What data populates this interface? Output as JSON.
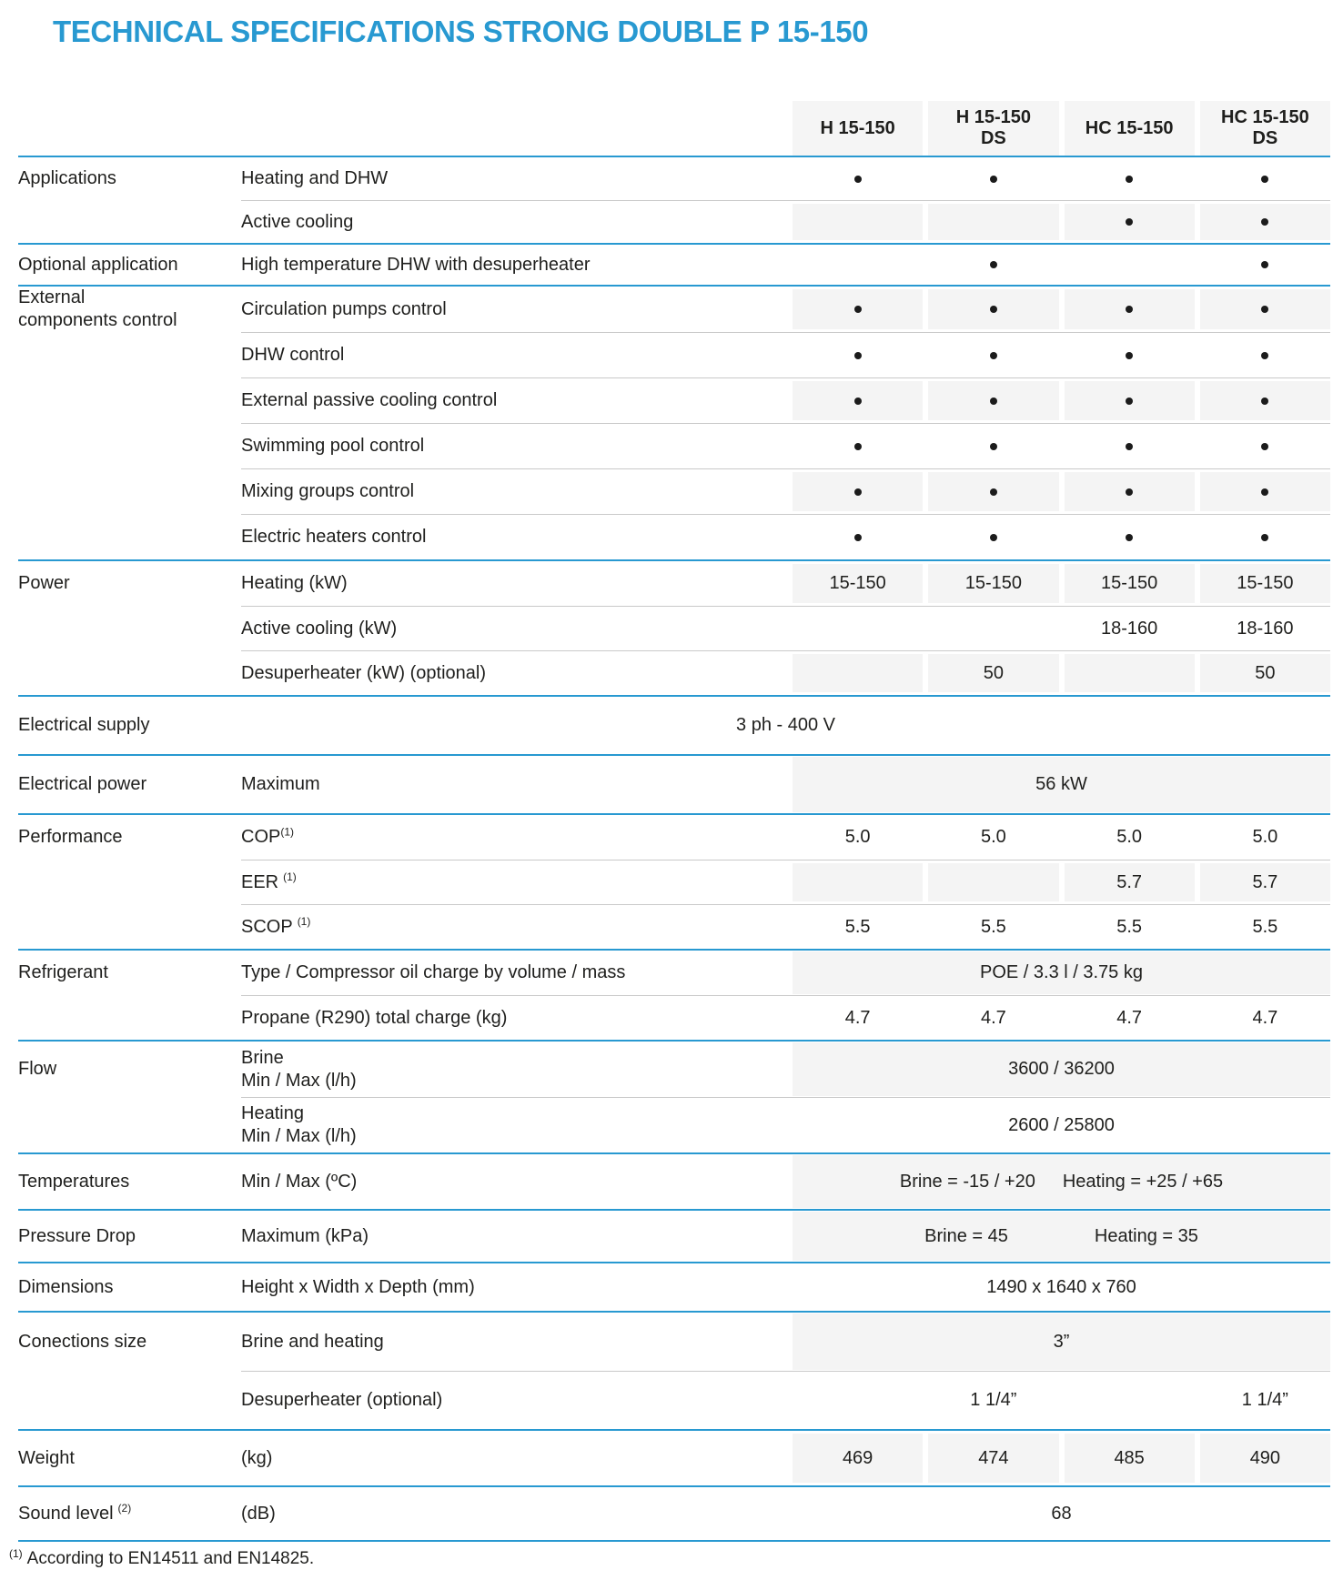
{
  "title": "TECHNICAL SPECIFICATIONS STRONG DOUBLE P 15-150",
  "colors": {
    "accent": "#2899d1",
    "cell_shade": "#f4f4f4"
  },
  "columns": [
    {
      "lines": [
        "H 15-150"
      ]
    },
    {
      "lines": [
        "H 15-150",
        "DS"
      ]
    },
    {
      "lines": [
        "HC 15-150"
      ]
    },
    {
      "lines": [
        "HC 15-150",
        "DS"
      ]
    }
  ],
  "dot_icon": "dot",
  "groups": [
    {
      "category_lines": [
        "Applications"
      ],
      "rows": [
        {
          "label_lines": [
            "Heating and DHW"
          ],
          "type": "cells",
          "shaded": false,
          "cells": [
            "dot",
            "dot",
            "dot",
            "dot"
          ]
        },
        {
          "label_lines": [
            "Active cooling"
          ],
          "type": "cells",
          "shaded": true,
          "cells": [
            "",
            "",
            "dot",
            "dot"
          ]
        }
      ]
    },
    {
      "category_lines": [
        "Optional application"
      ],
      "rows": [
        {
          "label_lines": [
            "High temperature DHW with desuperheater"
          ],
          "type": "cells",
          "shaded": false,
          "cells": [
            "",
            "dot",
            "",
            "dot"
          ]
        }
      ]
    },
    {
      "category_lines": [
        "External",
        "components control"
      ],
      "rows": [
        {
          "label_lines": [
            "Circulation pumps control"
          ],
          "type": "cells",
          "shaded": true,
          "cells": [
            "dot",
            "dot",
            "dot",
            "dot"
          ]
        },
        {
          "label_lines": [
            "DHW control"
          ],
          "type": "cells",
          "shaded": false,
          "cells": [
            "dot",
            "dot",
            "dot",
            "dot"
          ]
        },
        {
          "label_lines": [
            "External passive cooling control"
          ],
          "type": "cells",
          "shaded": true,
          "cells": [
            "dot",
            "dot",
            "dot",
            "dot"
          ]
        },
        {
          "label_lines": [
            "Swimming pool control"
          ],
          "type": "cells",
          "shaded": false,
          "cells": [
            "dot",
            "dot",
            "dot",
            "dot"
          ]
        },
        {
          "label_lines": [
            "Mixing groups control"
          ],
          "type": "cells",
          "shaded": true,
          "cells": [
            "dot",
            "dot",
            "dot",
            "dot"
          ]
        },
        {
          "label_lines": [
            "Electric heaters control"
          ],
          "type": "cells",
          "shaded": false,
          "cells": [
            "dot",
            "dot",
            "dot",
            "dot"
          ]
        }
      ]
    },
    {
      "category_lines": [
        "Power"
      ],
      "rows": [
        {
          "label_lines": [
            "Heating (kW)"
          ],
          "type": "cells",
          "shaded": true,
          "cells": [
            "15-150",
            "15-150",
            "15-150",
            "15-150"
          ]
        },
        {
          "label_lines": [
            "Active cooling (kW)"
          ],
          "type": "cells",
          "shaded": false,
          "cells": [
            "",
            "",
            "18-160",
            "18-160"
          ]
        },
        {
          "label_lines": [
            "Desuperheater (kW) (optional)"
          ],
          "type": "cells",
          "shaded": true,
          "cells": [
            "",
            "50",
            "",
            "50"
          ]
        }
      ]
    },
    {
      "category_lines": [
        "Electrical supply"
      ],
      "rows": [
        {
          "type": "wide",
          "shaded": false,
          "value": "3 ph - 400 V"
        }
      ]
    },
    {
      "category_lines": [
        "Electrical power"
      ],
      "rows": [
        {
          "label_lines": [
            "Maximum"
          ],
          "type": "span",
          "shaded": true,
          "parts": [
            "56 kW"
          ]
        }
      ]
    },
    {
      "category_lines": [
        "Performance"
      ],
      "rows": [
        {
          "label_lines": [
            "COP"
          ],
          "label_sup": "(1)",
          "sup_space": false,
          "type": "cells",
          "shaded": false,
          "cells": [
            "5.0",
            "5.0",
            "5.0",
            "5.0"
          ]
        },
        {
          "label_lines": [
            "EER"
          ],
          "label_sup": "(1)",
          "sup_space": true,
          "type": "cells",
          "shaded": true,
          "cells": [
            "",
            "",
            "5.7",
            "5.7"
          ]
        },
        {
          "label_lines": [
            "SCOP"
          ],
          "label_sup": "(1)",
          "sup_space": true,
          "type": "cells",
          "shaded": false,
          "cells": [
            "5.5",
            "5.5",
            "5.5",
            "5.5"
          ]
        }
      ]
    },
    {
      "category_lines": [
        "Refrigerant"
      ],
      "rows": [
        {
          "label_lines": [
            "Type / Compressor oil charge by volume / mass"
          ],
          "type": "span",
          "shaded": true,
          "parts": [
            "POE / 3.3 l / 3.75 kg"
          ]
        },
        {
          "label_lines": [
            "Propane (R290) total charge (kg)"
          ],
          "type": "cells",
          "shaded": false,
          "cells": [
            "4.7",
            "4.7",
            "4.7",
            "4.7"
          ]
        }
      ]
    },
    {
      "category_lines": [
        "Flow"
      ],
      "rows": [
        {
          "label_lines": [
            "Brine",
            "Min / Max (l/h)"
          ],
          "type": "span",
          "shaded": true,
          "parts": [
            "3600 / 36200"
          ]
        },
        {
          "label_lines": [
            "Heating",
            "Min / Max (l/h)"
          ],
          "type": "span",
          "shaded": false,
          "parts": [
            "2600 / 25800"
          ]
        }
      ]
    },
    {
      "category_lines": [
        "Temperatures"
      ],
      "rows": [
        {
          "label_lines": [
            "Min / Max (ºC)"
          ],
          "type": "span",
          "shaded": true,
          "parts": [
            "Brine = -15 / +20",
            "Heating = +25 / +65"
          ]
        }
      ]
    },
    {
      "category_lines": [
        "Pressure Drop"
      ],
      "rows": [
        {
          "label_lines": [
            "Maximum (kPa)"
          ],
          "type": "span",
          "shaded": true,
          "parts": [
            "Brine = 45",
            "Heating = 35"
          ]
        }
      ]
    },
    {
      "category_lines": [
        "Dimensions"
      ],
      "rows": [
        {
          "label_lines": [
            "Height x Width x Depth (mm)"
          ],
          "type": "span",
          "shaded": false,
          "parts": [
            "1490 x 1640 x 760"
          ]
        }
      ]
    },
    {
      "category_lines": [
        "Conections size"
      ],
      "rows": [
        {
          "label_lines": [
            "Brine and heating"
          ],
          "type": "span",
          "shaded": true,
          "parts": [
            "3”"
          ]
        },
        {
          "label_lines": [
            "Desuperheater (optional)"
          ],
          "type": "cells",
          "shaded": false,
          "cells": [
            "",
            "1 1/4”",
            "",
            "1 1/4”"
          ]
        }
      ]
    },
    {
      "category_lines": [
        "Weight"
      ],
      "rows": [
        {
          "label_lines": [
            "(kg)"
          ],
          "type": "cells",
          "shaded": true,
          "cells": [
            "469",
            "474",
            "485",
            "490"
          ]
        }
      ]
    },
    {
      "category_lines": [
        "Sound level"
      ],
      "category_sup": "(2)",
      "rows": [
        {
          "label_lines": [
            "(dB)"
          ],
          "type": "span",
          "shaded": false,
          "parts": [
            "68"
          ]
        }
      ]
    }
  ],
  "footnote": {
    "sup": "(1)",
    "text": "According to EN14511 and EN14825."
  }
}
